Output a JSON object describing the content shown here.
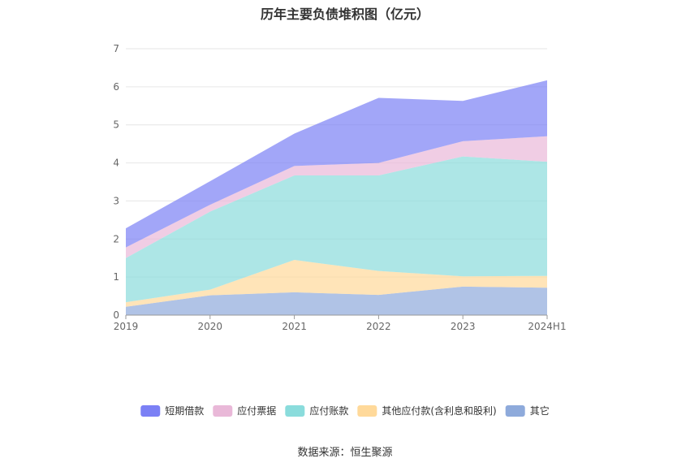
{
  "chart_data": {
    "type": "area",
    "title": "历年主要负债堆积图（亿元）",
    "categories": [
      "2019",
      "2020",
      "2021",
      "2022",
      "2023",
      "2024H1"
    ],
    "ylim": [
      0,
      7
    ],
    "yticks": [
      "0",
      "1",
      "2",
      "3",
      "4",
      "5",
      "6",
      "7"
    ],
    "stacked": true,
    "grid": true,
    "legend_position": "bottom",
    "series": [
      {
        "name": "其它",
        "color": "#8eaadb",
        "values": [
          0.22,
          0.52,
          0.6,
          0.53,
          0.75,
          0.72
        ]
      },
      {
        "name": "其他应付款(含利息和股利)",
        "color": "#ffd99a",
        "values": [
          0.12,
          0.15,
          0.85,
          0.63,
          0.27,
          0.31
        ]
      },
      {
        "name": "应付账款",
        "color": "#8adcdc",
        "values": [
          1.16,
          2.05,
          2.22,
          2.51,
          3.15,
          3.0
        ]
      },
      {
        "name": "应付票据",
        "color": "#e9b8d8",
        "values": [
          0.28,
          0.18,
          0.25,
          0.33,
          0.4,
          0.67
        ]
      },
      {
        "name": "短期借款",
        "color": "#7b80f5",
        "values": [
          0.5,
          0.62,
          0.85,
          1.71,
          1.06,
          1.47
        ]
      }
    ],
    "legend_order": [
      "短期借款",
      "应付票据",
      "应付账款",
      "其他应付款(含利息和股利)",
      "其它"
    ]
  },
  "source": "数据来源：恒生聚源"
}
